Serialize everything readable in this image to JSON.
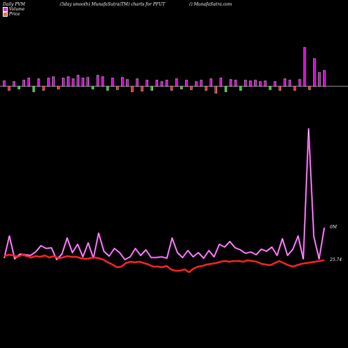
{
  "header": {
    "left": "Daily PVM",
    "center": "(5day smooth) MunafaSutra(TM) charts for PFUT",
    "right": "() MunafaSutra.com"
  },
  "legend": [
    {
      "label": "Volume",
      "color": "#cc33cc"
    },
    {
      "label": "Price",
      "color": "#ff6633"
    }
  ],
  "chart_data": [
    {
      "type": "bar",
      "ylim": [
        -10,
        56
      ],
      "note_colors": {
        "up": "#cc00cc",
        "down_red": "#ff2222",
        "down_green": "#22cc22",
        "baseline": "#cccccc"
      },
      "series": [
        {
          "values": [
            8,
            -6,
            7,
            -4,
            9,
            12,
            -8,
            11,
            -6,
            12,
            14,
            -4,
            12,
            14,
            11,
            16,
            12,
            13,
            -4,
            16,
            14,
            -6,
            12,
            -5,
            13,
            10,
            -8,
            11,
            -7,
            9,
            -6,
            9,
            7,
            9,
            -6,
            11,
            -4,
            9,
            -5,
            7,
            9,
            -6,
            11,
            -10,
            12,
            -8,
            10,
            9,
            -6,
            9,
            8,
            9,
            7,
            8,
            -5,
            7,
            -6,
            11,
            9,
            -6,
            10,
            56,
            -5,
            40,
            20,
            23
          ]
        }
      ]
    },
    {
      "type": "line",
      "annotations": [
        "0M",
        "25.74"
      ],
      "series": [
        {
          "color": "#cc33cc",
          "values": [
            4,
            36,
            3,
            10,
            9,
            8,
            13,
            22,
            18,
            19,
            2,
            10,
            33,
            12,
            24,
            6,
            26,
            4,
            40,
            14,
            7,
            18,
            12,
            2,
            6,
            18,
            8,
            16,
            5,
            5,
            6,
            4,
            33,
            12,
            5,
            15,
            6,
            12,
            4,
            15,
            6,
            24,
            20,
            28,
            19,
            16,
            11,
            13,
            9,
            17,
            14,
            20,
            8,
            32,
            8,
            17,
            36,
            3,
            190,
            35,
            3,
            48
          ]
        },
        {
          "color": "#ff2222",
          "values": [
            10,
            12,
            11,
            9,
            12,
            10,
            8,
            10,
            9,
            11,
            8,
            10,
            7,
            8,
            10,
            9,
            9,
            7,
            6,
            7,
            8,
            7,
            5,
            1,
            -2,
            -6,
            -5,
            0,
            2,
            1,
            2,
            0,
            -2,
            -5,
            -5,
            -6,
            -4,
            -9,
            -11,
            -11,
            -9,
            -13,
            -8,
            -5,
            -4,
            -2,
            -1,
            0,
            2,
            3,
            2,
            3,
            3,
            2,
            4,
            3,
            2,
            -1,
            -2,
            -3,
            0,
            3,
            0,
            -3,
            -5,
            -3,
            -1,
            0,
            1,
            2,
            3,
            4
          ]
        }
      ]
    }
  ]
}
